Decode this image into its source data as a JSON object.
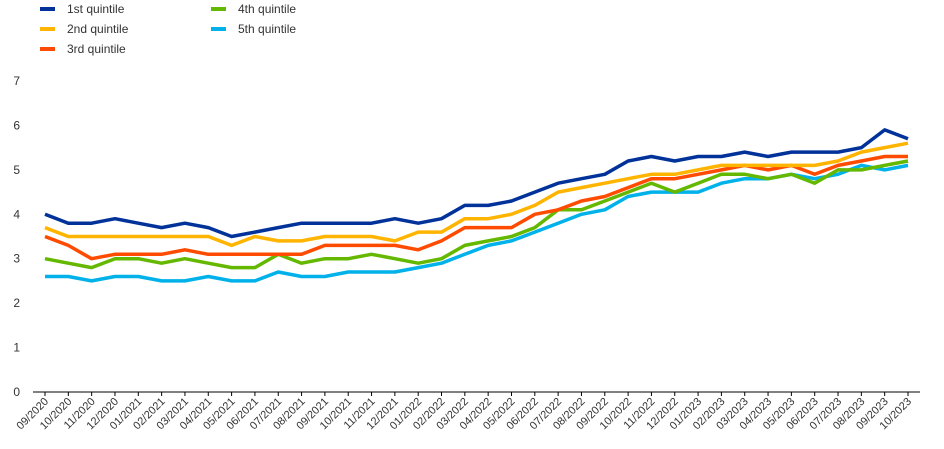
{
  "chart_data": {
    "type": "line",
    "title": "",
    "xlabel": "",
    "ylabel": "",
    "ylim": [
      0,
      7
    ],
    "yticks": [
      "0",
      "1",
      "2",
      "3",
      "4",
      "5",
      "6",
      "7"
    ],
    "grid": false,
    "legend_position": "top-left",
    "categories": [
      "09/2020",
      "10/2020",
      "11/2020",
      "12/2020",
      "01/2021",
      "02/2021",
      "03/2021",
      "04/2021",
      "05/2021",
      "06/2021",
      "07/2021",
      "08/2021",
      "09/2021",
      "10/2021",
      "11/2021",
      "12/2021",
      "01/2022",
      "02/2022",
      "03/2022",
      "04/2022",
      "05/2022",
      "06/2022",
      "07/2022",
      "08/2022",
      "09/2022",
      "10/2022",
      "11/2022",
      "12/2022",
      "01/2023",
      "02/2023",
      "03/2023",
      "04/2023",
      "05/2023",
      "06/2023",
      "07/2023",
      "08/2023",
      "09/2023",
      "10/2023"
    ],
    "series": [
      {
        "name": "1st quintile",
        "color": "#003299",
        "values": [
          4.0,
          3.8,
          3.8,
          3.9,
          3.8,
          3.7,
          3.8,
          3.7,
          3.5,
          3.6,
          3.7,
          3.8,
          3.8,
          3.8,
          3.8,
          3.9,
          3.8,
          3.9,
          4.2,
          4.2,
          4.3,
          4.5,
          4.7,
          4.8,
          4.9,
          5.2,
          5.3,
          5.2,
          5.3,
          5.3,
          5.4,
          5.3,
          5.4,
          5.4,
          5.4,
          5.5,
          5.9,
          5.7
        ]
      },
      {
        "name": "2nd quintile",
        "color": "#FFB400",
        "values": [
          3.7,
          3.5,
          3.5,
          3.5,
          3.5,
          3.5,
          3.5,
          3.5,
          3.3,
          3.5,
          3.4,
          3.4,
          3.5,
          3.5,
          3.5,
          3.4,
          3.6,
          3.6,
          3.9,
          3.9,
          4.0,
          4.2,
          4.5,
          4.6,
          4.7,
          4.8,
          4.9,
          4.9,
          5.0,
          5.1,
          5.1,
          5.1,
          5.1,
          5.1,
          5.2,
          5.4,
          5.5,
          5.6
        ]
      },
      {
        "name": "3rd quintile",
        "color": "#FF4B00",
        "values": [
          3.5,
          3.3,
          3.0,
          3.1,
          3.1,
          3.1,
          3.2,
          3.1,
          3.1,
          3.1,
          3.1,
          3.1,
          3.3,
          3.3,
          3.3,
          3.3,
          3.2,
          3.4,
          3.7,
          3.7,
          3.7,
          4.0,
          4.1,
          4.3,
          4.4,
          4.6,
          4.8,
          4.8,
          4.9,
          5.0,
          5.1,
          5.0,
          5.1,
          4.9,
          5.1,
          5.2,
          5.3,
          5.3
        ]
      },
      {
        "name": "4th quintile",
        "color": "#65B800",
        "values": [
          3.0,
          2.9,
          2.8,
          3.0,
          3.0,
          2.9,
          3.0,
          2.9,
          2.8,
          2.8,
          3.1,
          2.9,
          3.0,
          3.0,
          3.1,
          3.0,
          2.9,
          3.0,
          3.3,
          3.4,
          3.5,
          3.7,
          4.1,
          4.1,
          4.3,
          4.5,
          4.7,
          4.5,
          4.7,
          4.9,
          4.9,
          4.8,
          4.9,
          4.7,
          5.0,
          5.0,
          5.1,
          5.2
        ]
      },
      {
        "name": "5th quintile",
        "color": "#00B1EA",
        "values": [
          2.6,
          2.6,
          2.5,
          2.6,
          2.6,
          2.5,
          2.5,
          2.6,
          2.5,
          2.5,
          2.7,
          2.6,
          2.6,
          2.7,
          2.7,
          2.7,
          2.8,
          2.9,
          3.1,
          3.3,
          3.4,
          3.6,
          3.8,
          4.0,
          4.1,
          4.4,
          4.5,
          4.5,
          4.5,
          4.7,
          4.8,
          4.8,
          4.9,
          4.8,
          4.9,
          5.1,
          5.0,
          5.1
        ]
      }
    ]
  }
}
